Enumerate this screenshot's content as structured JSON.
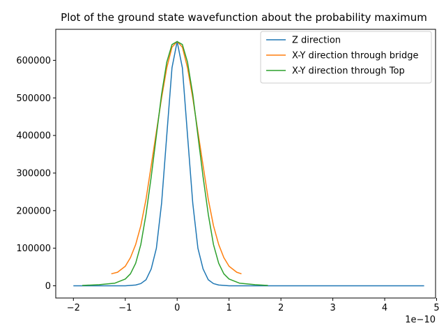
{
  "chart_data": {
    "type": "line",
    "title": "Plot of the ground state wavefunction about the probability maximum",
    "xlabel": "",
    "ylabel": "",
    "x_offset_label": "1e−10",
    "xlim": [
      -2.34,
      4.98
    ],
    "ylim": [
      -32500,
      682500
    ],
    "x_ticks": [
      -2,
      -1,
      0,
      1,
      2,
      3,
      4,
      5
    ],
    "x_tick_labels": [
      "−2",
      "−1",
      "0",
      "1",
      "2",
      "3",
      "4",
      "5"
    ],
    "y_ticks": [
      0,
      100000,
      200000,
      300000,
      400000,
      500000,
      600000
    ],
    "y_tick_labels": [
      "0",
      "100000",
      "200000",
      "300000",
      "400000",
      "500000",
      "600000"
    ],
    "grid": false,
    "legend_position": "top-right",
    "series": [
      {
        "name": "Z direction",
        "color": "#1f77b4",
        "x": [
          -2.0,
          -1.0,
          -0.8,
          -0.7,
          -0.6,
          -0.5,
          -0.4,
          -0.3,
          -0.2,
          -0.1,
          0.0,
          0.1,
          0.2,
          0.3,
          0.4,
          0.5,
          0.6,
          0.7,
          0.8,
          1.0,
          2.0,
          3.0,
          4.0,
          4.76
        ],
        "y": [
          0,
          0,
          2000,
          6000,
          16000,
          45000,
          100000,
          220000,
          400000,
          580000,
          650000,
          580000,
          400000,
          220000,
          100000,
          45000,
          16000,
          6000,
          2000,
          0,
          0,
          0,
          0,
          0
        ]
      },
      {
        "name": "X-Y direction through bridge",
        "color": "#ff7f0e",
        "x": [
          -1.27,
          -1.15,
          -1.0,
          -0.9,
          -0.8,
          -0.7,
          -0.6,
          -0.5,
          -0.4,
          -0.3,
          -0.2,
          -0.1,
          0.0,
          0.1,
          0.2,
          0.3,
          0.4,
          0.5,
          0.6,
          0.7,
          0.8,
          0.9,
          1.0,
          1.15,
          1.24
        ],
        "y": [
          32000,
          36000,
          52000,
          75000,
          110000,
          160000,
          230000,
          320000,
          410000,
          500000,
          580000,
          635000,
          650000,
          635000,
          580000,
          500000,
          410000,
          320000,
          230000,
          160000,
          110000,
          75000,
          52000,
          36000,
          32000
        ]
      },
      {
        "name": "X-Y direction through Top",
        "color": "#2ca02c",
        "x": [
          -1.83,
          -1.5,
          -1.2,
          -1.0,
          -0.9,
          -0.8,
          -0.7,
          -0.6,
          -0.5,
          -0.4,
          -0.3,
          -0.2,
          -0.1,
          0.0,
          0.1,
          0.2,
          0.3,
          0.4,
          0.5,
          0.6,
          0.7,
          0.8,
          0.9,
          1.0,
          1.2,
          1.5,
          1.75
        ],
        "y": [
          1000,
          3000,
          7000,
          18000,
          32000,
          60000,
          110000,
          190000,
          290000,
          400000,
          510000,
          595000,
          642000,
          650000,
          642000,
          595000,
          510000,
          400000,
          290000,
          190000,
          110000,
          60000,
          32000,
          18000,
          7000,
          3000,
          1000
        ]
      }
    ]
  }
}
